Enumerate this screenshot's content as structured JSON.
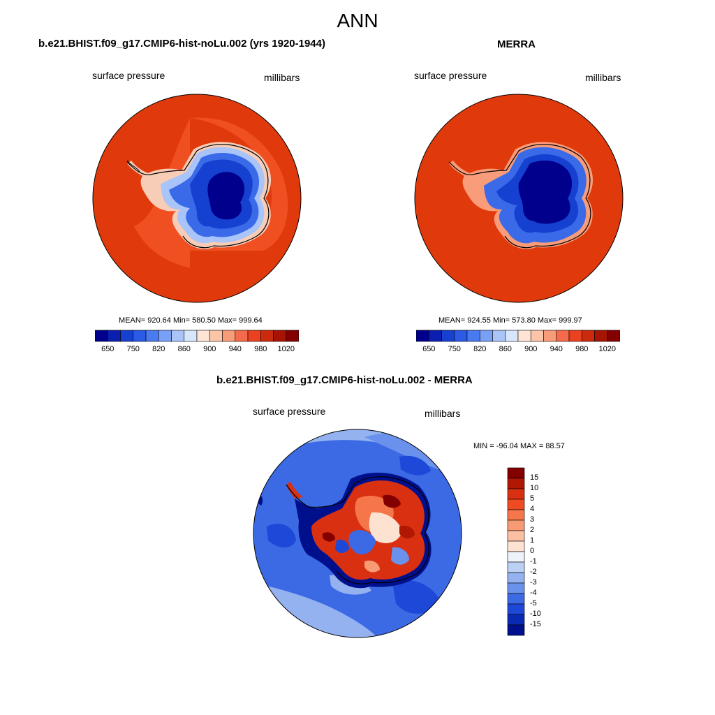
{
  "title": "ANN",
  "panels": {
    "left": {
      "title": "b.e21.BHIST.f09_g17.CMIP6-hist-noLu.002 (yrs 1920-1944)",
      "variable": "surface pressure",
      "units": "millibars",
      "stats": "MEAN= 920.64  Min= 580.50  Max= 999.64"
    },
    "right": {
      "title": "MERRA",
      "variable": "surface pressure",
      "units": "millibars",
      "stats": "MEAN= 924.55  Min= 573.80  Max= 999.97"
    },
    "diff": {
      "title": "b.e21.BHIST.f09_g17.CMIP6-hist-noLu.002 - MERRA",
      "variable": "surface pressure",
      "units": "millibars",
      "stats": "MIN = -96.04 MAX =  88.57"
    }
  },
  "abs_colorbar": {
    "colors": [
      "#00008c",
      "#0a1fb0",
      "#1640d0",
      "#2a5ae6",
      "#4a7af0",
      "#7aa0f5",
      "#aac4f8",
      "#d8e6fb",
      "#fde4d4",
      "#fcc4a8",
      "#f99c7a",
      "#f46a4a",
      "#ea4220",
      "#cc2a0c",
      "#a81404",
      "#840000"
    ],
    "tick_labels": [
      "650",
      "750",
      "820",
      "860",
      "900",
      "940",
      "980",
      "1020"
    ]
  },
  "diff_colorbar": {
    "colors": [
      "#840000",
      "#b01804",
      "#d83010",
      "#f04a22",
      "#f4764a",
      "#f89a74",
      "#fbbfa2",
      "#fde2d2",
      "#eef2fb",
      "#bcd0f4",
      "#94b2f0",
      "#6a92ec",
      "#3c6ae4",
      "#1e48d8",
      "#0a2ab4",
      "#00108c"
    ],
    "tick_labels": [
      "15",
      "10",
      "5",
      "4",
      "3",
      "2",
      "1",
      "0",
      "-1",
      "-2",
      "-3",
      "-4",
      "-5",
      "-10",
      "-15"
    ]
  }
}
